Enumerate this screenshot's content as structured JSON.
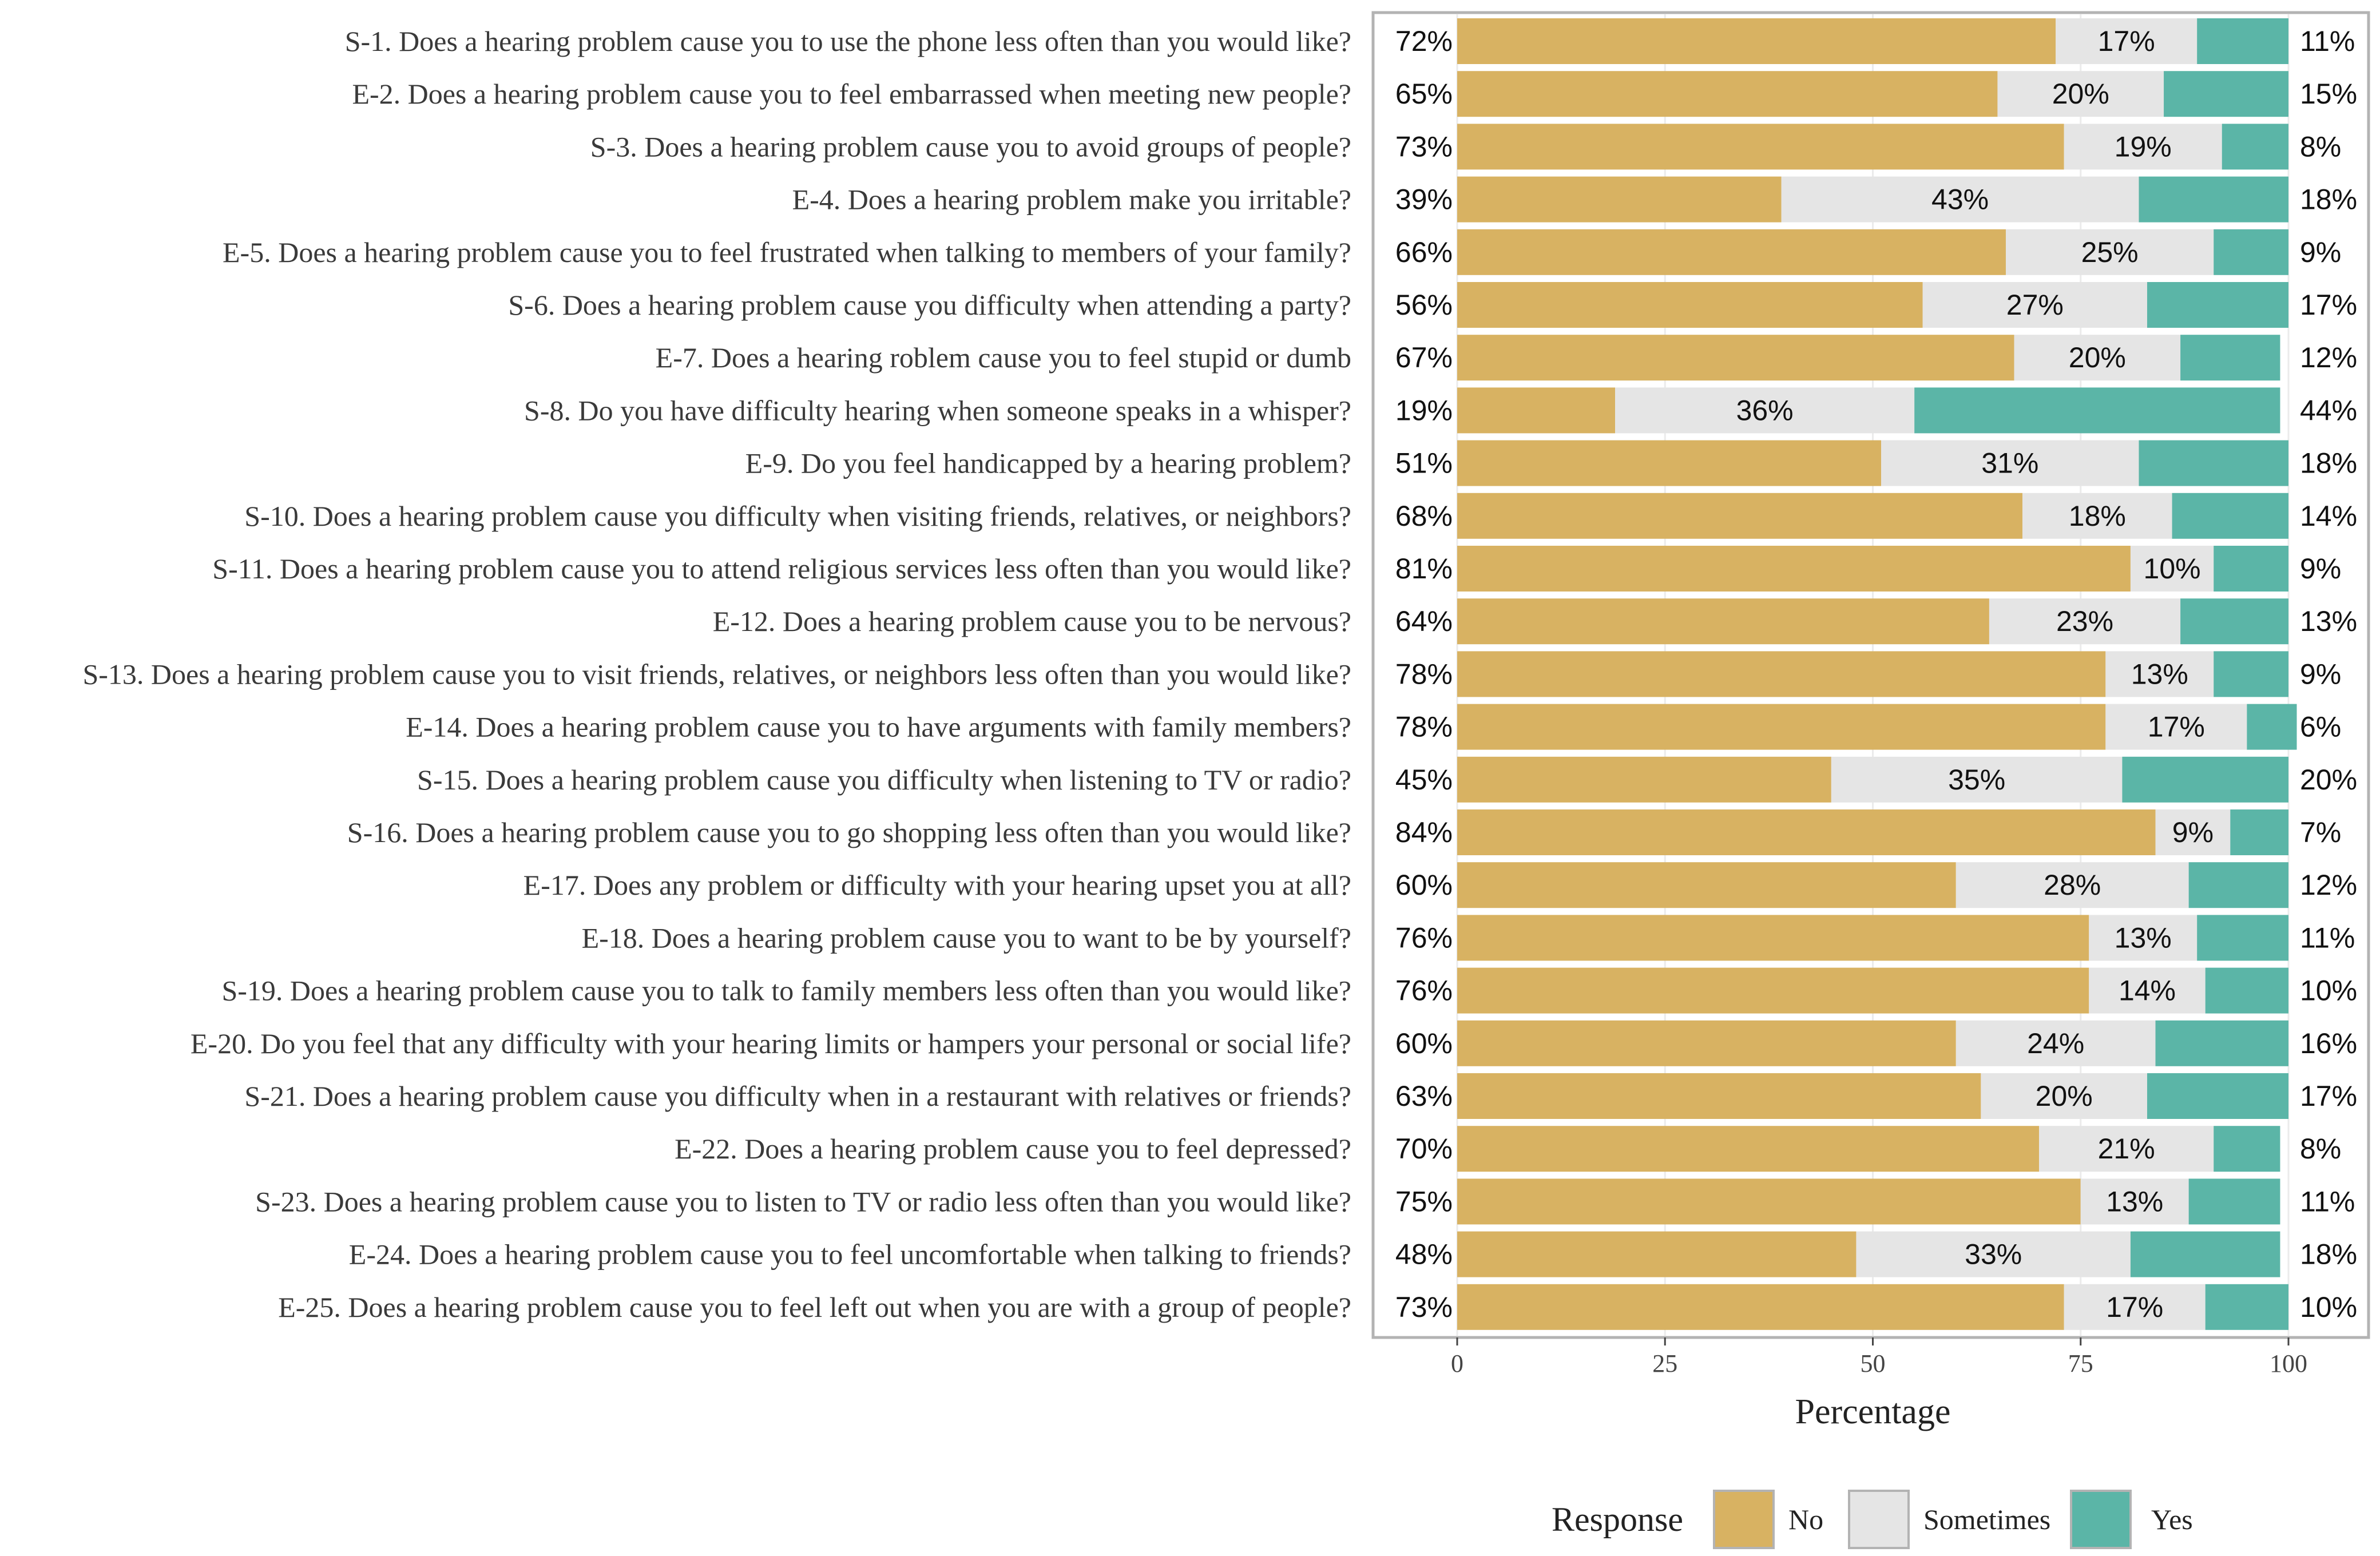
{
  "chart_data": {
    "type": "bar",
    "orientation": "horizontal-stacked-100",
    "xlabel": "Percentage",
    "xlim": [
      0,
      100
    ],
    "xticks": [
      "0",
      "25",
      "50",
      "75",
      "100"
    ],
    "legend": {
      "title": "Response",
      "position": "bottom",
      "entries": [
        {
          "name": "No",
          "color": "#D8B262"
        },
        {
          "name": "Sometimes",
          "color": "#E5E5E5"
        },
        {
          "name": "Yes",
          "color": "#5BB5A7"
        }
      ]
    },
    "categories": [
      "S-1. Does a hearing problem cause you to use the phone less often than you would like?",
      "E-2. Does a hearing problem cause you to feel embarrassed when meeting new people?",
      "S-3. Does a hearing problem cause you to avoid groups of people?",
      "E-4. Does a hearing problem make you irritable?",
      "E-5. Does a hearing problem cause you to feel frustrated when talking to members of your family?",
      "S-6. Does a hearing problem cause you difficulty when attending a party?",
      "E-7. Does a hearing roblem cause you to feel stupid or dumb",
      "S-8. Do you have difficulty hearing when someone speaks in a whisper?",
      "E-9. Do you feel handicapped by a hearing problem?",
      "S-10. Does a hearing problem cause you difficulty when visiting friends, relatives, or neighbors?",
      "S-11. Does a hearing problem cause you to attend religious services less often than you would like?",
      "E-12. Does a hearing problem cause you to be nervous?",
      "S-13. Does a hearing problem cause you to visit friends, relatives, or neighbors less often than you would like?",
      "E-14. Does a hearing problem cause you to have arguments with family members?",
      "S-15. Does a hearing problem cause you difficulty when listening to TV or radio?",
      "S-16. Does a hearing problem cause you to go shopping less often than you would like?",
      "E-17. Does any problem or difficulty with your hearing upset you at all?",
      "E-18. Does a hearing problem cause you to want to be by yourself?",
      "S-19. Does a hearing problem cause you to talk to family members less often than you would like?",
      "E-20. Do you feel that any difficulty with your hearing limits or hampers your personal or social life?",
      "S-21. Does a hearing problem cause you difficulty when in a restaurant with relatives or friends?",
      "E-22. Does a hearing problem cause you to feel depressed?",
      "S-23. Does a hearing problem cause you to listen to TV or radio less often than you would like?",
      "E-24. Does a hearing problem cause you to feel uncomfortable when talking to friends?",
      "E-25. Does a hearing problem cause you to feel left out when you are with a group of people?"
    ],
    "series": [
      {
        "name": "No",
        "values": [
          72,
          65,
          73,
          39,
          66,
          56,
          67,
          19,
          51,
          68,
          81,
          64,
          78,
          78,
          45,
          84,
          60,
          76,
          76,
          60,
          63,
          70,
          75,
          48,
          73
        ]
      },
      {
        "name": "Sometimes",
        "values": [
          17,
          20,
          19,
          43,
          25,
          27,
          20,
          36,
          31,
          18,
          10,
          23,
          13,
          17,
          35,
          9,
          28,
          13,
          14,
          24,
          20,
          21,
          13,
          33,
          17
        ]
      },
      {
        "name": "Yes",
        "values": [
          11,
          15,
          8,
          18,
          9,
          17,
          12,
          44,
          18,
          14,
          9,
          13,
          9,
          6,
          20,
          7,
          12,
          11,
          10,
          16,
          17,
          8,
          11,
          18,
          10
        ]
      }
    ]
  }
}
